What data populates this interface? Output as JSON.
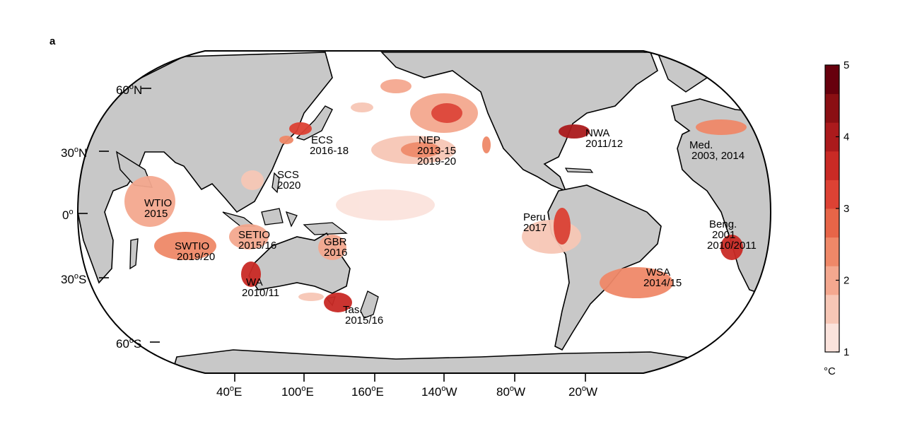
{
  "panel_label": "a",
  "map": {
    "ocean_color": "#ffffff",
    "land_color": "#c8c8c8",
    "lat_labels": [
      {
        "base": "60",
        "suffix": "N"
      },
      {
        "base": "30",
        "suffix": "N"
      },
      {
        "base": "0",
        "suffix": ""
      },
      {
        "base": "30",
        "suffix": "S"
      },
      {
        "base": "60",
        "suffix": "S"
      }
    ],
    "lon_labels": [
      {
        "base": "40",
        "suffix": "E"
      },
      {
        "base": "100",
        "suffix": "E"
      },
      {
        "base": "160",
        "suffix": "E"
      },
      {
        "base": "140",
        "suffix": "W"
      },
      {
        "base": "80",
        "suffix": "W"
      },
      {
        "base": "20",
        "suffix": "W"
      }
    ]
  },
  "regions": [
    {
      "code": "ECS",
      "years": "2016-18"
    },
    {
      "code": "NEP",
      "years": "2013-15",
      "years2": "2019-20"
    },
    {
      "code": "NWA",
      "years": "2011/12"
    },
    {
      "code": "Med.",
      "years": "2003, 2014"
    },
    {
      "code": "SCS",
      "years": "2020"
    },
    {
      "code": "WTIO",
      "years": "2015"
    },
    {
      "code": "SWTIO",
      "years": "2019/20"
    },
    {
      "code": "SETIO",
      "years": "2015/16"
    },
    {
      "code": "GBR",
      "years": "2016"
    },
    {
      "code": "WA",
      "years": "2010/11"
    },
    {
      "code": "Tas.",
      "years": "2015/16"
    },
    {
      "code": "Peru",
      "years": "2017"
    },
    {
      "code": "Beng.",
      "years": "2001",
      "years2": "2010/2011"
    },
    {
      "code": "WSA",
      "years": "2014/15"
    }
  ],
  "colorbar": {
    "unit": "°C",
    "ticks": [
      "1",
      "2",
      "3",
      "4",
      "5"
    ],
    "range": [
      1,
      5
    ],
    "colors": [
      "#fbe3dc",
      "#f7c7b6",
      "#f4a88f",
      "#ef8868",
      "#e76548",
      "#dd4234",
      "#c92a25",
      "#ab1a1c",
      "#8a0f13",
      "#67000d"
    ]
  }
}
